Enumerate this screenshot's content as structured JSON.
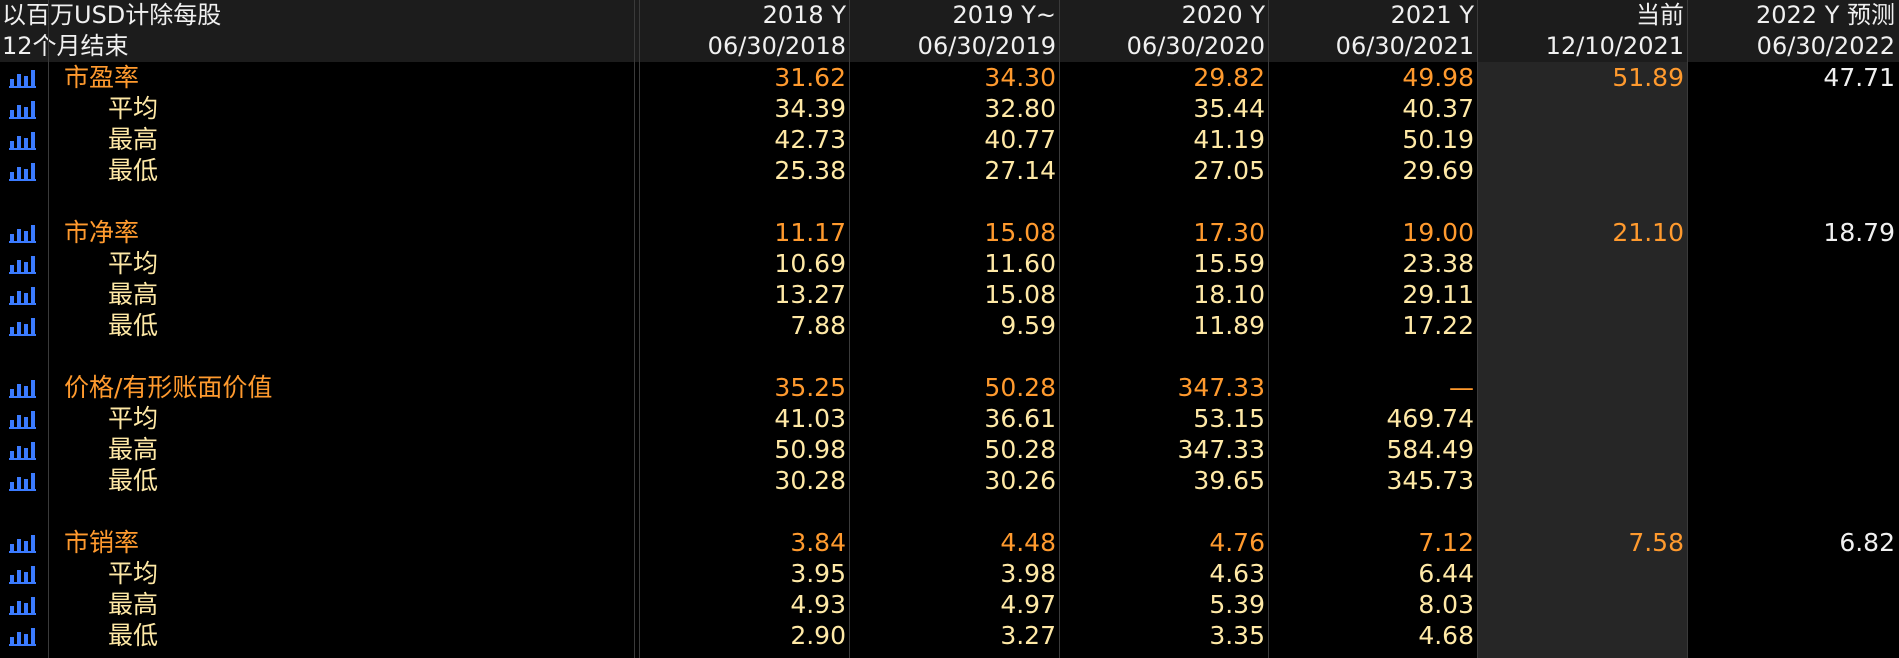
{
  "header": {
    "currency_note": "以百万USD计除每股",
    "period_note": "12个月结束",
    "columns": [
      {
        "year": "2018 Y",
        "date": "06/30/2018"
      },
      {
        "year": "2019 Y~",
        "date": "06/30/2019"
      },
      {
        "year": "2020 Y",
        "date": "06/30/2020"
      },
      {
        "year": "2021 Y",
        "date": "06/30/2021"
      },
      {
        "year": "当前",
        "date": "12/10/2021"
      },
      {
        "year": "2022 Y 预测",
        "date": "06/30/2022"
      }
    ]
  },
  "icon": "bar-chart-icon",
  "colors": {
    "accent_orange": "#ff9a2e",
    "sub_text": "#ffe9a6",
    "icon_blue": "#3b7bff",
    "header_bg": "#1c1c1c",
    "current_col_bg": "#262626"
  },
  "groups": [
    {
      "main": {
        "label": "市盈率",
        "values": [
          "31.62",
          "34.30",
          "29.82",
          "49.98",
          "51.89",
          "47.71"
        ]
      },
      "subs": [
        {
          "label": "平均",
          "values": [
            "34.39",
            "32.80",
            "35.44",
            "40.37"
          ]
        },
        {
          "label": "最高",
          "values": [
            "42.73",
            "40.77",
            "41.19",
            "50.19"
          ]
        },
        {
          "label": "最低",
          "values": [
            "25.38",
            "27.14",
            "27.05",
            "29.69"
          ]
        }
      ]
    },
    {
      "main": {
        "label": "市净率",
        "values": [
          "11.17",
          "15.08",
          "17.30",
          "19.00",
          "21.10",
          "18.79"
        ]
      },
      "subs": [
        {
          "label": "平均",
          "values": [
            "10.69",
            "11.60",
            "15.59",
            "23.38"
          ]
        },
        {
          "label": "最高",
          "values": [
            "13.27",
            "15.08",
            "18.10",
            "29.11"
          ]
        },
        {
          "label": "最低",
          "values": [
            "7.88",
            "9.59",
            "11.89",
            "17.22"
          ]
        }
      ]
    },
    {
      "main": {
        "label": "价格/有形账面价值",
        "values": [
          "35.25",
          "50.28",
          "347.33",
          "—",
          "",
          ""
        ]
      },
      "subs": [
        {
          "label": "平均",
          "values": [
            "41.03",
            "36.61",
            "53.15",
            "469.74"
          ]
        },
        {
          "label": "最高",
          "values": [
            "50.98",
            "50.28",
            "347.33",
            "584.49"
          ]
        },
        {
          "label": "最低",
          "values": [
            "30.28",
            "30.26",
            "39.65",
            "345.73"
          ]
        }
      ]
    },
    {
      "main": {
        "label": "市销率",
        "values": [
          "3.84",
          "4.48",
          "4.76",
          "7.12",
          "7.58",
          "6.82"
        ]
      },
      "subs": [
        {
          "label": "平均",
          "values": [
            "3.95",
            "3.98",
            "4.63",
            "6.44"
          ]
        },
        {
          "label": "最高",
          "values": [
            "4.93",
            "4.97",
            "5.39",
            "8.03"
          ]
        },
        {
          "label": "最低",
          "values": [
            "2.90",
            "3.27",
            "3.35",
            "4.68"
          ]
        }
      ]
    }
  ]
}
